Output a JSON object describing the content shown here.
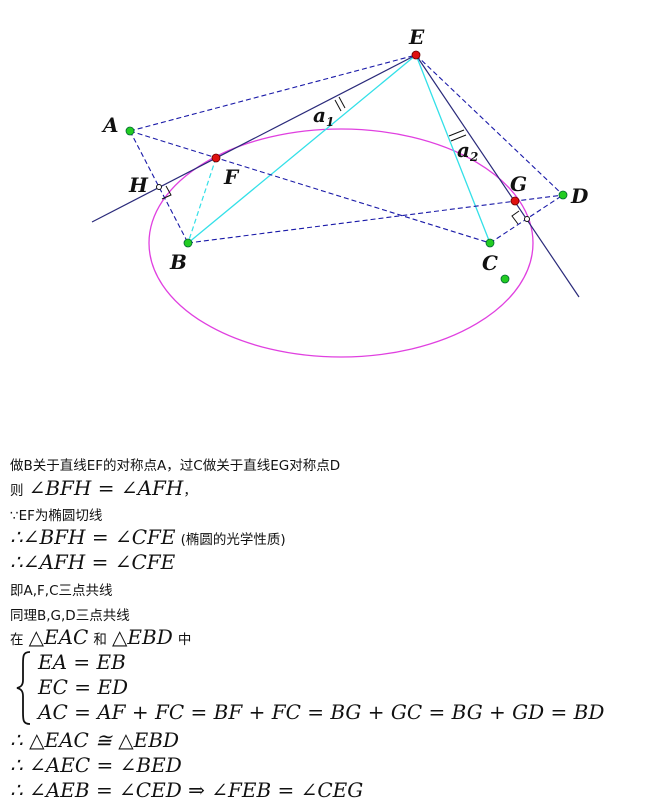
{
  "figure": {
    "point_labels": {
      "E": "E",
      "A": "A",
      "H": "H",
      "F": "F",
      "B": "B",
      "C": "C",
      "G": "G",
      "D": "D"
    },
    "angle_labels": {
      "a1_base": "a",
      "a1_sub": "1",
      "a2_base": "a",
      "a2_sub": "2"
    },
    "colors": {
      "ellipse": "#e040e0",
      "cyan": "#33e0e8",
      "dashed": "#1a1aa8",
      "line": "#2a2a7a",
      "red_point": "#e01010",
      "green_point": "#22cc22"
    }
  },
  "text": {
    "l1": "做B关于直线EF的对称点A，过C做关于直线EG对称点D",
    "l2_pre": "则",
    "l2_math": "∠BFH = ∠AFH",
    "l2_post": "，",
    "l3": "∵EF为椭圆切线",
    "l4_math": "∴∠BFH = ∠CFE",
    "l4_note": "(椭圆的光学性质)",
    "l5_math": "∴∠AFH = ∠CFE",
    "l6": "即A,F,C三点共线",
    "l7": "同理B,G,D三点共线",
    "l8_pre": "在",
    "l8_m1": "△EAC",
    "l8_mid": "和",
    "l8_m2": "△EBD",
    "l8_post": "中",
    "sys1": "EA = EB",
    "sys2": "EC = ED",
    "sys3": "AC = AF + FC = BF + FC = BG + GC = BG + GD = BD",
    "l10": "∴ △EAC ≅ △EBD",
    "l11": "∴ ∠AEC = ∠BED",
    "l12": "∴ ∠AEB = ∠CED ⇒ ∠FEB = ∠CEG"
  }
}
